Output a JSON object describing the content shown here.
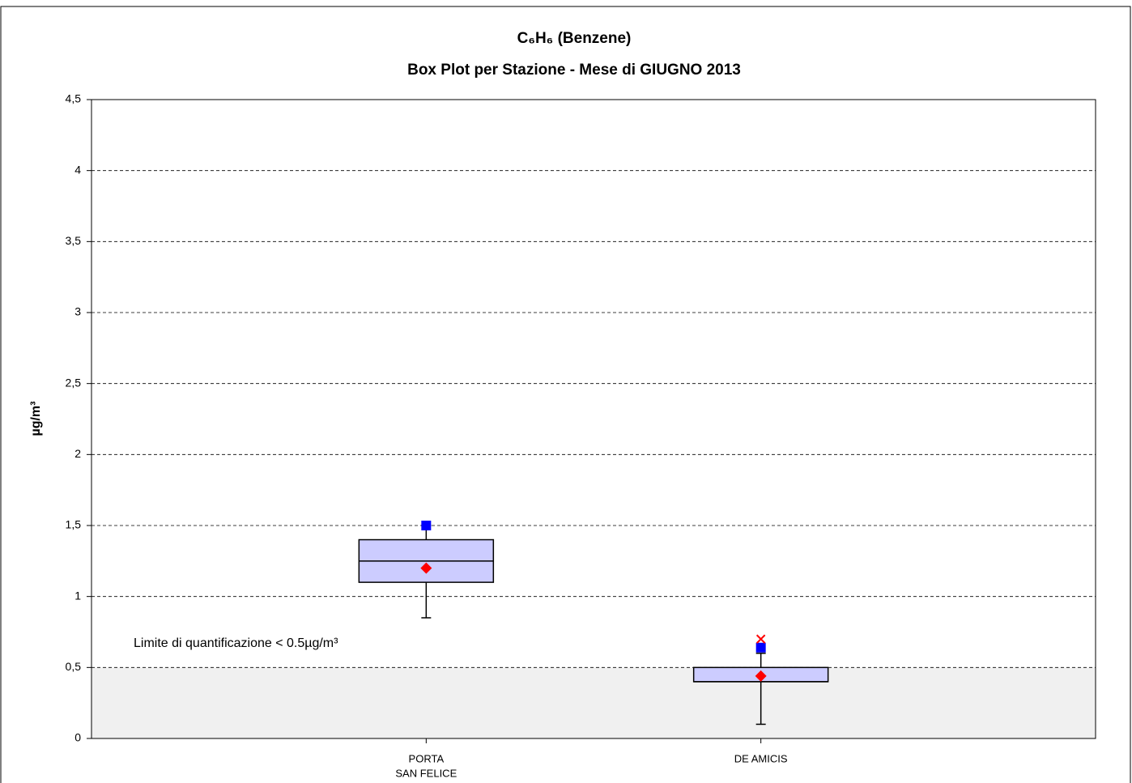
{
  "chart_data": {
    "type": "box",
    "title": "C₆H₆ (Benzene)",
    "subtitle": "Box Plot per Stazione - Mese di GIUGNO 2013",
    "y_label": "µg/m³",
    "annotation": "Limite di quantificazione < 0.5µg/m³",
    "categories": [
      [
        "PORTA",
        "SAN FELICE"
      ],
      [
        "DE AMICIS"
      ]
    ],
    "boxes": [
      {
        "whislo": 0.85,
        "q1": 1.1,
        "med": 1.25,
        "q3": 1.4,
        "whishi": 1.5
      },
      {
        "whislo": 0.1,
        "q1": 0.4,
        "med": 0.4,
        "q3": 0.5,
        "whishi": 0.6
      }
    ],
    "means": [
      1.2,
      0.44
    ],
    "squares": [
      1.5,
      0.64
    ],
    "crosses": [
      null,
      0.7
    ],
    "box_color": "#ccccff",
    "mean_color": "#ff0000",
    "square_color": "#0000ff",
    "cross_color": "#ff0000",
    "shaded_band": [
      0,
      0.5
    ],
    "band_color": "#f0f0f0",
    "ylim": [
      0,
      4.5
    ],
    "yticks": [
      0,
      {
        "value": 0.5,
        "label": "0,5"
      },
      1,
      {
        "value": 1.5,
        "label": "1,5"
      },
      2,
      {
        "value": 2.5,
        "label": "2,5"
      },
      3,
      {
        "value": 3.5,
        "label": "3,5"
      },
      4,
      {
        "value": 4.5,
        "label": "4,5"
      }
    ],
    "grid": true
  }
}
